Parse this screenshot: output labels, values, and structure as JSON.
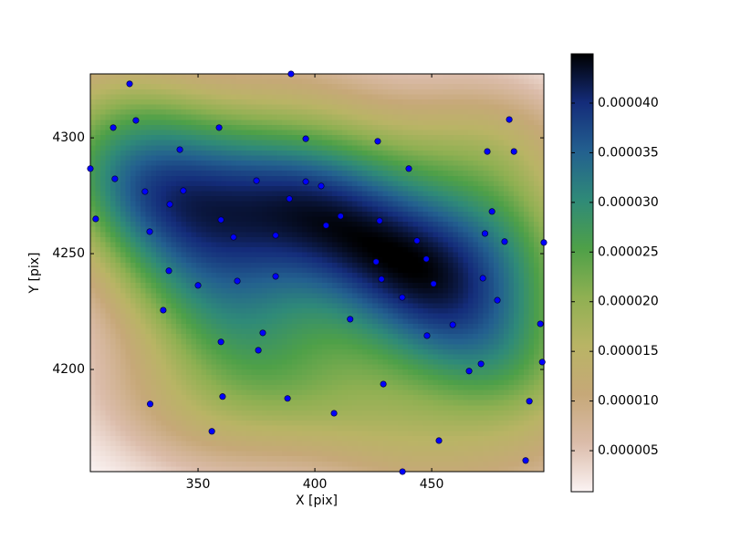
{
  "chart_data": {
    "type": "density-scatter",
    "x_label": "X [pix]",
    "y_label": "Y [pix]",
    "xlim": [
      303.9,
      498.0
    ],
    "ylim": [
      4155.9,
      4327.6
    ],
    "xticks": [
      350,
      400,
      450
    ],
    "yticks": [
      4200,
      4250,
      4300
    ],
    "point_color": "#0000ff",
    "x": [
      389.8,
      320.7,
      323.4,
      313.7,
      359.0,
      483.2,
      396.1,
      426.9,
      342.2,
      473.8,
      485.2,
      303.9,
      440.2,
      314.4,
      375.0,
      396.1,
      402.7,
      327.3,
      343.7,
      389.1,
      337.9,
      475.8,
      306.2,
      359.8,
      411.0,
      427.7,
      404.8,
      329.3,
      365.2,
      383.2,
      472.8,
      481.2,
      443.7,
      498.0,
      447.7,
      426.2,
      337.5,
      383.2,
      428.5,
      471.9,
      366.8,
      350.0,
      450.8,
      437.4,
      478.1,
      335.1,
      415.1,
      459.0,
      496.5,
      377.7,
      448.0,
      359.8,
      375.8,
      471.1,
      497.3,
      466.0,
      429.3,
      360.5,
      388.3,
      491.8,
      329.5,
      408.2,
      355.9,
      453.1,
      490.2,
      437.5
    ],
    "y": [
      4327.6,
      4323.3,
      4307.5,
      4304.4,
      4304.4,
      4307.9,
      4299.6,
      4298.5,
      4294.9,
      4294.1,
      4294.1,
      4286.7,
      4286.7,
      4282.3,
      4281.5,
      4281.1,
      4279.2,
      4276.8,
      4277.2,
      4273.7,
      4271.3,
      4268.2,
      4265.0,
      4264.6,
      4266.2,
      4264.2,
      4262.2,
      4259.5,
      4257.1,
      4257.9,
      4258.7,
      4255.2,
      4255.6,
      4254.8,
      4247.7,
      4246.5,
      4242.6,
      4240.2,
      4239.0,
      4239.4,
      4238.2,
      4236.3,
      4237.0,
      4231.1,
      4229.9,
      4225.6,
      4221.7,
      4219.3,
      4219.7,
      4215.8,
      4214.6,
      4211.9,
      4208.3,
      4202.4,
      4203.2,
      4199.3,
      4193.7,
      4188.3,
      4187.5,
      4186.3,
      4185.1,
      4181.1,
      4173.3,
      4169.3,
      4160.7,
      4155.9
    ],
    "colorbar": {
      "clim": [
        8.7e-07,
        4.496e-05
      ],
      "ticks": [
        5e-06,
        {
          "value": 1e-05,
          "label": "0.000010"
        },
        1.5e-05,
        {
          "value": 2e-05,
          "label": "0.000020"
        },
        2.5e-05,
        {
          "value": 3e-05,
          "label": "0.000030"
        },
        3.5e-05,
        {
          "value": 4e-05,
          "label": "0.000040"
        }
      ],
      "colormap": [
        "#fbf3f3",
        "#dbbcaa",
        "#c6a878",
        "#b9b465",
        "#8fb052",
        "#4ea048",
        "#2f8a78",
        "#23608f",
        "#142c7a",
        "#000000"
      ]
    }
  }
}
